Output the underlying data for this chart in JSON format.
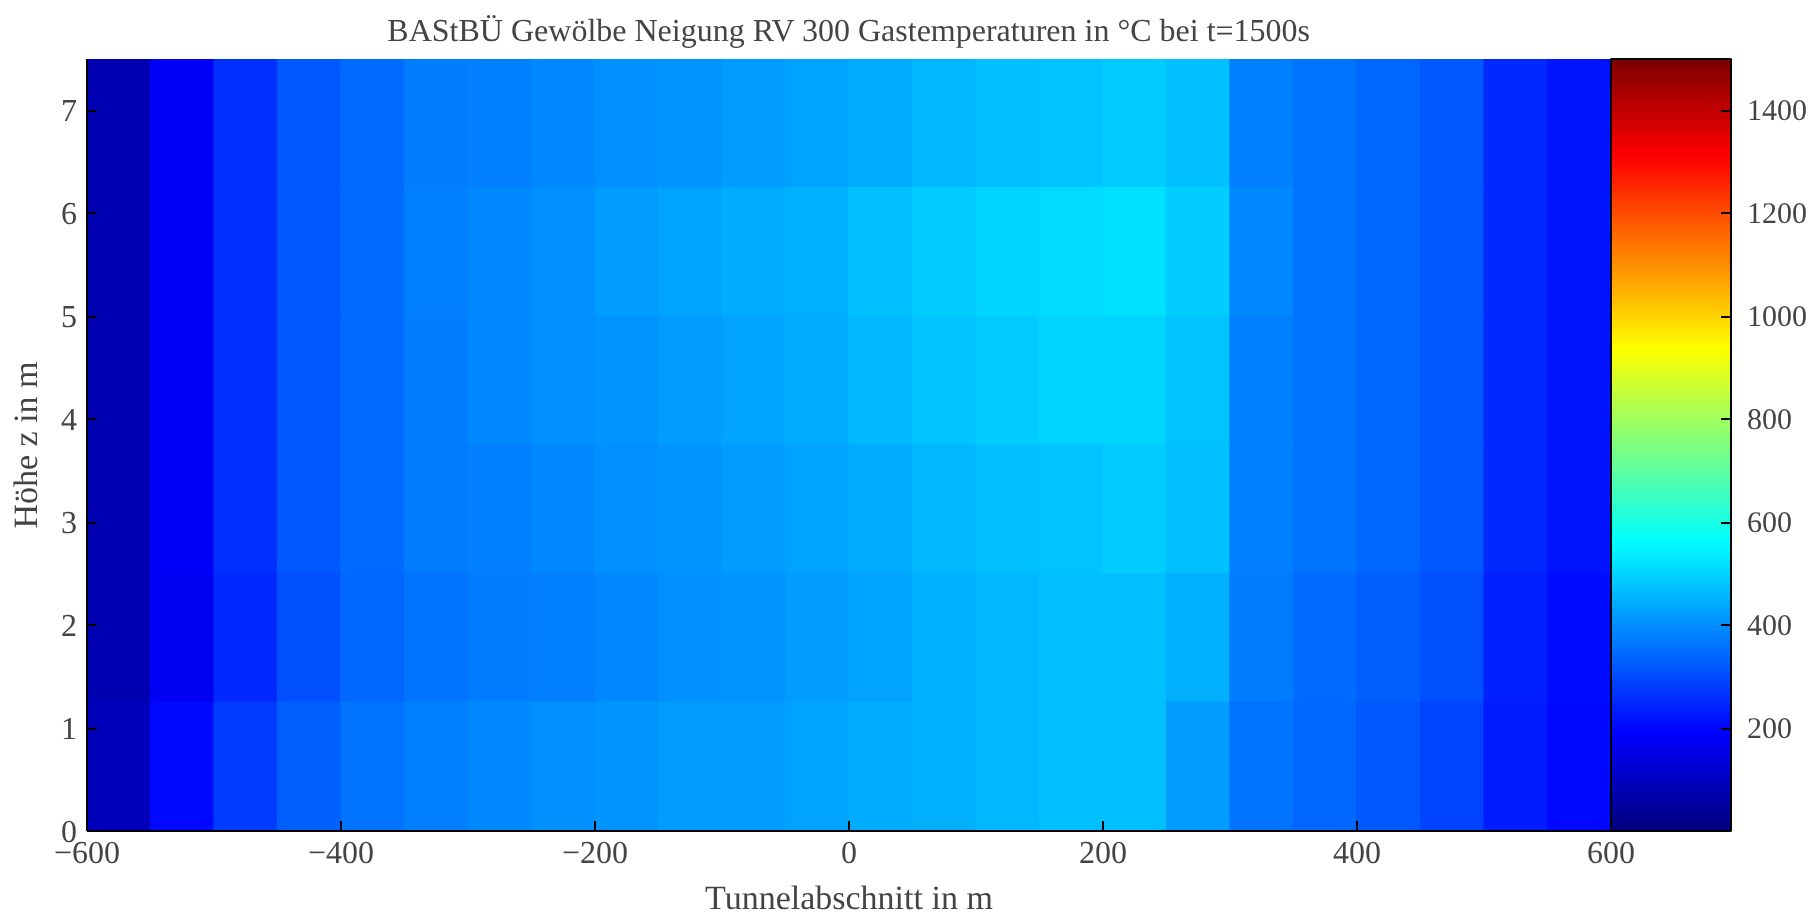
{
  "chart_data": {
    "type": "heatmap",
    "title": "BAStBÜ Gewölbe Neigung RV 300 Gastemperaturen in °C bei t=1500s",
    "xlabel": "Tunnelabschnitt in m",
    "ylabel": "Höhe z in m",
    "x": [
      -575,
      -525,
      -475,
      -425,
      -375,
      -325,
      -275,
      -225,
      -175,
      -125,
      -75,
      -25,
      25,
      75,
      125,
      175,
      225,
      275,
      325,
      375,
      425,
      475,
      525,
      575
    ],
    "y": [
      6.875,
      5.625,
      4.375,
      3.125,
      1.875,
      0.625
    ],
    "cells": [
      [
        80,
        180,
        260,
        320,
        350,
        370,
        380,
        390,
        400,
        410,
        420,
        430,
        440,
        460,
        470,
        480,
        490,
        470,
        380,
        360,
        340,
        320,
        250,
        220
      ],
      [
        80,
        180,
        260,
        320,
        350,
        380,
        390,
        400,
        420,
        430,
        440,
        450,
        470,
        490,
        500,
        510,
        520,
        490,
        390,
        360,
        340,
        320,
        250,
        220
      ],
      [
        80,
        180,
        260,
        320,
        350,
        370,
        390,
        400,
        410,
        420,
        430,
        440,
        460,
        480,
        490,
        500,
        500,
        480,
        380,
        360,
        340,
        320,
        250,
        220
      ],
      [
        80,
        180,
        260,
        320,
        350,
        370,
        380,
        390,
        400,
        410,
        420,
        430,
        440,
        460,
        470,
        480,
        490,
        470,
        380,
        360,
        340,
        320,
        250,
        220
      ],
      [
        80,
        170,
        250,
        310,
        340,
        360,
        370,
        380,
        390,
        400,
        410,
        420,
        430,
        450,
        460,
        470,
        470,
        450,
        370,
        350,
        330,
        310,
        240,
        210
      ],
      [
        90,
        200,
        280,
        330,
        360,
        380,
        390,
        400,
        410,
        420,
        420,
        430,
        440,
        450,
        460,
        470,
        470,
        420,
        360,
        340,
        320,
        290,
        230,
        200
      ]
    ],
    "xlim": [
      -600,
      600
    ],
    "xticks": [
      -600,
      -400,
      -200,
      0,
      200,
      400,
      600
    ],
    "ylim": [
      0,
      7.5
    ],
    "yticks": [
      0,
      1,
      2,
      3,
      4,
      5,
      6,
      7
    ],
    "clim": [
      0,
      1500
    ],
    "cticks": [
      200,
      400,
      600,
      800,
      1000,
      1200,
      1400
    ]
  }
}
